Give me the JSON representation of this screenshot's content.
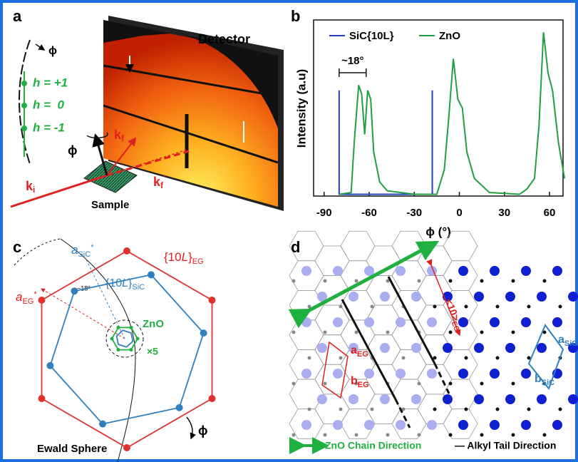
{
  "panels": [
    "a",
    "b",
    "c",
    "d"
  ],
  "panel_a": {
    "detector": "Detector",
    "sample": "Sample",
    "phi_top": "ϕ",
    "phi_axis": "ϕ",
    "h_labels": [
      "h = +1",
      "h =  0",
      "h = -1"
    ],
    "k_i": [
      "k",
      "i"
    ],
    "k_f": [
      "k",
      "f"
    ],
    "k_f_prime": [
      "k",
      "f",
      "'"
    ]
  },
  "chart_data": {
    "type": "line",
    "xlabel": "ϕ (°)",
    "ylabel": "Intensity (a.u)",
    "xlim": [
      -97,
      69
    ],
    "xticks": [
      -90,
      -60,
      -30,
      0,
      30,
      60
    ],
    "ylim": [
      0,
      1
    ],
    "annotation": "~18°",
    "series": [
      {
        "name": "SiC{10L}",
        "color": "#2040c0",
        "x": [
          -80,
          -80,
          -18,
          -18
        ],
        "values": [
          0.6,
          0.01,
          0.01,
          0.6
        ]
      },
      {
        "name": "ZnO",
        "color": "#20a040",
        "x": [
          -80,
          -72,
          -70,
          -67,
          -65,
          -63,
          -61,
          -59,
          -57,
          -53,
          -48,
          -30,
          -15,
          -10,
          -7,
          -4,
          -1,
          2,
          5,
          10,
          20,
          40,
          45,
          50,
          53,
          56,
          59,
          62,
          66,
          70
        ],
        "values": [
          0.01,
          0.02,
          0.3,
          0.63,
          0.58,
          0.35,
          0.6,
          0.55,
          0.25,
          0.08,
          0.03,
          0.01,
          0.01,
          0.15,
          0.45,
          0.78,
          0.55,
          0.5,
          0.25,
          0.1,
          0.02,
          0.01,
          0.04,
          0.1,
          0.4,
          0.93,
          0.7,
          0.6,
          0.3,
          0.1
        ]
      }
    ]
  },
  "panel_c": {
    "red_label": [
      "{10",
      "L",
      "}",
      "EG"
    ],
    "blue_label": [
      "{10",
      "L",
      "}",
      "SiC"
    ],
    "a_sic": [
      "a",
      "SiC",
      "*"
    ],
    "a_eg": [
      "a",
      "EG",
      "*"
    ],
    "angle": "~18°",
    "zno": "ZnO",
    "magnification": "×5",
    "ewald": "Ewald Sphere",
    "phi": "ϕ"
  },
  "panel_d": {
    "direction": [
      "<10>",
      "EG"
    ],
    "a_eg": [
      "a",
      "EG"
    ],
    "b_eg": [
      "b",
      "EG"
    ],
    "a_sic": [
      "a",
      "SiC"
    ],
    "b_sic": [
      "b",
      "SiC"
    ],
    "legend_zno": "ZnO Chain Direction",
    "legend_alkyl": "— Alkyl Tail Direction"
  }
}
